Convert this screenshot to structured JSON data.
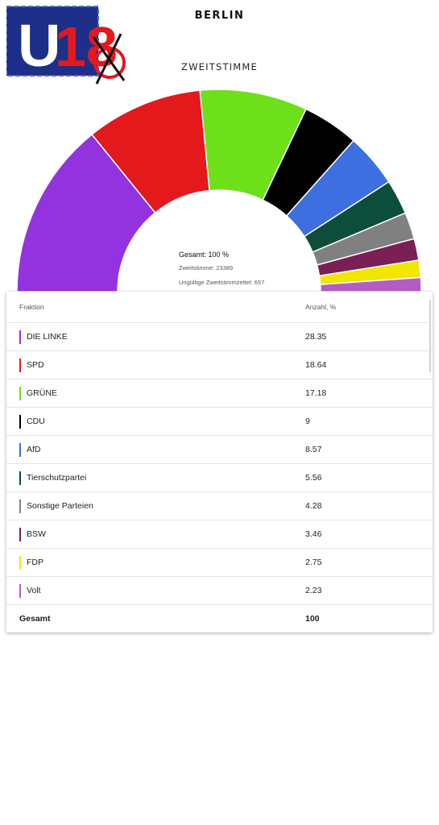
{
  "header": {
    "logo_text": "U18",
    "title": "BERLIN",
    "chart_title": "ZWEITSTIMME"
  },
  "center": {
    "total": "Gesamt: 100 %",
    "votes": "Zweitstimme: 23389",
    "invalid": "Ungültige Zweitstimmzettel: 657"
  },
  "table": {
    "col_party": "Fraktion",
    "col_value": "Anzahl, %",
    "total_label": "Gesamt",
    "total_value": "100"
  },
  "chart_data": {
    "type": "pie",
    "variant": "half-donut",
    "title": "ZWEITSTIMME",
    "categories": [
      "DIE LINKE",
      "SPD",
      "GRÜNE",
      "CDU",
      "AfD",
      "Tierschutzpartei",
      "Sonstige Parteien",
      "BSW",
      "FDP",
      "Volt"
    ],
    "values": [
      28.35,
      18.64,
      17.18,
      9,
      8.57,
      5.56,
      4.28,
      3.46,
      2.75,
      2.23
    ],
    "colors": [
      "#9333df",
      "#e3191c",
      "#6de01a",
      "#000000",
      "#3e6fe0",
      "#0d4d3c",
      "#808080",
      "#7b1f56",
      "#f2e600",
      "#b35dc0"
    ]
  }
}
